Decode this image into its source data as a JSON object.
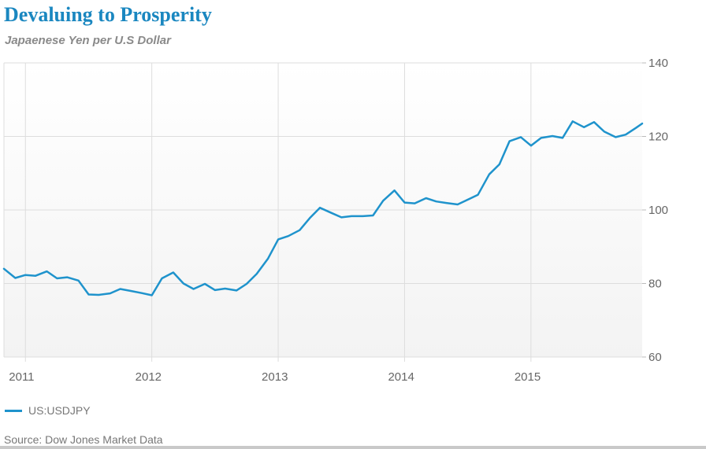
{
  "title": "Devaluing to Prosperity",
  "subtitle": "Japaenese Yen per U.S Dollar",
  "source": "Source: Dow Jones Market Data",
  "colors": {
    "title": "#1a87c0",
    "line": "#1f93cc",
    "grid": "#dddddd",
    "plot_fill_bottom": "#f4f4f4"
  },
  "chart_data": {
    "type": "line",
    "title": "Devaluing to Prosperity",
    "subtitle": "Japaenese Yen per U.S Dollar",
    "xlabel": "",
    "ylabel": "",
    "x_ticks": [
      "2011",
      "2012",
      "2013",
      "2014",
      "2015"
    ],
    "y_ticks": [
      "60",
      "80",
      "100",
      "120",
      "140"
    ],
    "xlim": [
      2010.83,
      2015.88
    ],
    "ylim": [
      60,
      140
    ],
    "y_axis_side": "right",
    "grid": true,
    "legend_position": "bottom-left",
    "series": [
      {
        "name": "US:USDJPY",
        "x": [
          2010.83,
          2010.92,
          2011.0,
          2011.08,
          2011.17,
          2011.25,
          2011.33,
          2011.42,
          2011.5,
          2011.58,
          2011.67,
          2011.75,
          2011.83,
          2011.92,
          2012.0,
          2012.08,
          2012.17,
          2012.25,
          2012.33,
          2012.42,
          2012.5,
          2012.58,
          2012.67,
          2012.75,
          2012.83,
          2012.92,
          2013.0,
          2013.08,
          2013.17,
          2013.25,
          2013.33,
          2013.42,
          2013.5,
          2013.58,
          2013.67,
          2013.75,
          2013.83,
          2013.92,
          2014.0,
          2014.08,
          2014.17,
          2014.25,
          2014.33,
          2014.42,
          2014.5,
          2014.58,
          2014.67,
          2014.75,
          2014.83,
          2014.92,
          2015.0,
          2015.08,
          2015.17,
          2015.25,
          2015.33,
          2015.42,
          2015.5,
          2015.58,
          2015.67,
          2015.75,
          2015.83,
          2015.88
        ],
        "values": [
          84.0,
          81.5,
          82.3,
          82.1,
          83.3,
          81.4,
          81.7,
          80.8,
          77.0,
          76.9,
          77.3,
          78.5,
          78.0,
          77.4,
          76.8,
          81.4,
          83.0,
          80.0,
          78.5,
          79.9,
          78.2,
          78.6,
          78.1,
          79.9,
          82.6,
          86.8,
          92.0,
          92.9,
          94.5,
          97.8,
          100.6,
          99.2,
          98.0,
          98.3,
          98.3,
          98.5,
          102.5,
          105.3,
          102.0,
          101.8,
          103.2,
          102.3,
          101.9,
          101.5,
          102.8,
          104.1,
          109.7,
          112.4,
          118.7,
          119.8,
          117.5,
          119.6,
          120.1,
          119.6,
          124.1,
          122.5,
          123.9,
          121.3,
          119.8,
          120.5,
          122.3,
          123.5
        ]
      }
    ]
  }
}
